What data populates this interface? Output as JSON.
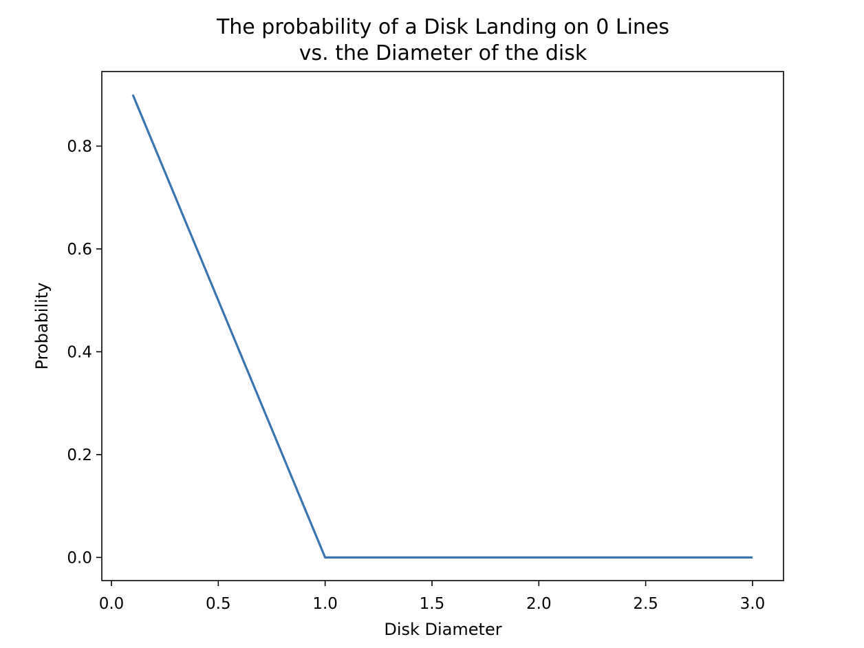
{
  "chart_data": {
    "type": "line",
    "title_lines": [
      "The probability of a Disk Landing on 0 Lines",
      "vs. the Diameter of the disk"
    ],
    "xlabel": "Disk Diameter",
    "ylabel": "Probability",
    "xlim": [
      -0.045,
      3.145
    ],
    "ylim": [
      -0.045,
      0.945
    ],
    "xticks": [
      0.0,
      0.5,
      1.0,
      1.5,
      2.0,
      2.5,
      3.0
    ],
    "xtick_labels": [
      "0.0",
      "0.5",
      "1.0",
      "1.5",
      "2.0",
      "2.5",
      "3.0"
    ],
    "yticks": [
      0.0,
      0.2,
      0.4,
      0.6,
      0.8
    ],
    "ytick_labels": [
      "0.0",
      "0.2",
      "0.4",
      "0.6",
      "0.8"
    ],
    "grid": false,
    "series": [
      {
        "color": "#3b75af",
        "x": [
          0.1,
          0.2,
          0.3,
          0.4,
          0.5,
          0.6,
          0.7,
          0.8,
          0.9,
          1.0,
          1.5,
          2.0,
          2.5,
          3.0
        ],
        "y": [
          0.9,
          0.8,
          0.7,
          0.6,
          0.5,
          0.4,
          0.3,
          0.2,
          0.1,
          0.0,
          0.0,
          0.0,
          0.0,
          0.0
        ]
      }
    ]
  }
}
